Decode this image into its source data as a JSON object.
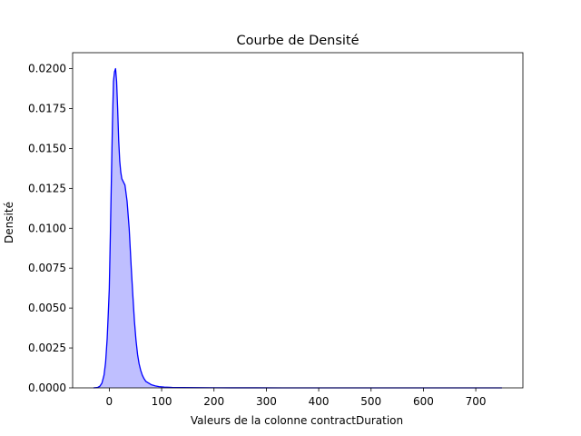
{
  "chart_data": {
    "type": "area",
    "title": "Courbe de Densité",
    "xlabel": "Valeurs de la colonne contractDuration",
    "ylabel": "Densité",
    "xlim": [
      -70,
      790
    ],
    "ylim": [
      0,
      0.021
    ],
    "xticks": [
      0,
      100,
      200,
      300,
      400,
      500,
      600,
      700
    ],
    "yticks": [
      0.0,
      0.0025,
      0.005,
      0.0075,
      0.01,
      0.0125,
      0.015,
      0.0175,
      0.02
    ],
    "xtick_labels": [
      "0",
      "100",
      "200",
      "300",
      "400",
      "500",
      "600",
      "700"
    ],
    "ytick_labels": [
      "0.0000",
      "0.0025",
      "0.0050",
      "0.0075",
      "0.0100",
      "0.0125",
      "0.0150",
      "0.0175",
      "0.0200"
    ],
    "grid": false,
    "series": [
      {
        "color": "#0000ff",
        "fill_color": "#0000ff",
        "fill_opacity": 0.25,
        "x": [
          -30,
          -22,
          -18,
          -14,
          -10,
          -7,
          -4,
          -2,
          0,
          2,
          4,
          6,
          8,
          10,
          12,
          14,
          16,
          18,
          20,
          22,
          24,
          27,
          30,
          34,
          38,
          42,
          45,
          48,
          51,
          54,
          57,
          60,
          63,
          66,
          70,
          75,
          80,
          88,
          95,
          105,
          120,
          140,
          170,
          200,
          240,
          280,
          330,
          400,
          500,
          600,
          700,
          750
        ],
        "y": [
          0,
          3e-05,
          0.0001,
          0.0003,
          0.0008,
          0.0016,
          0.0031,
          0.0046,
          0.0062,
          0.0095,
          0.013,
          0.0165,
          0.0192,
          0.0198,
          0.02,
          0.0192,
          0.0175,
          0.0155,
          0.0142,
          0.0135,
          0.0131,
          0.0129,
          0.0127,
          0.0117,
          0.01,
          0.0075,
          0.0058,
          0.0042,
          0.003,
          0.0021,
          0.0015,
          0.0011,
          0.0008,
          0.0006,
          0.0004,
          0.0003,
          0.0002,
          0.00012,
          8e-05,
          5e-05,
          3e-05,
          2e-05,
          1e-05,
          5e-06,
          3e-06,
          2e-06,
          1e-06,
          5e-07,
          0,
          0,
          0,
          0
        ]
      }
    ]
  }
}
